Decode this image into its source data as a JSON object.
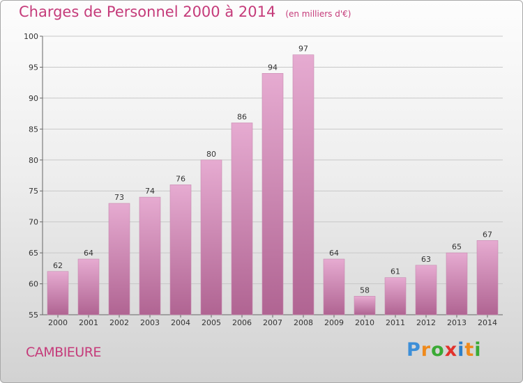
{
  "title": "Charges de Personnel 2000 à 2014",
  "subtitle": "(en milliers d'€)",
  "commune": "CAMBIEURE",
  "brand": {
    "letters": [
      "P",
      "r",
      "o",
      "x",
      "i",
      "t",
      "i"
    ],
    "colors": [
      "#3d8fd8",
      "#ef8a1c",
      "#3aaa35",
      "#e2322c",
      "#2d7fc8",
      "#ef8a1c",
      "#3aaa35"
    ]
  },
  "colors": {
    "bar_top": "#e6abd1",
    "bar_bottom": "#b06492",
    "grid": "#c8c8c8",
    "text_accent": "#c53b7a"
  },
  "chart_data": {
    "type": "bar",
    "categories": [
      "2000",
      "2001",
      "2002",
      "2003",
      "2004",
      "2005",
      "2006",
      "2007",
      "2008",
      "2009",
      "2010",
      "2011",
      "2012",
      "2013",
      "2014"
    ],
    "values": [
      62,
      64,
      73,
      74,
      76,
      80,
      86,
      94,
      97,
      64,
      58,
      61,
      63,
      65,
      67
    ],
    "ylim": [
      55,
      100
    ],
    "yticks": [
      55,
      60,
      65,
      70,
      75,
      80,
      85,
      90,
      95,
      100
    ],
    "grid": true
  }
}
